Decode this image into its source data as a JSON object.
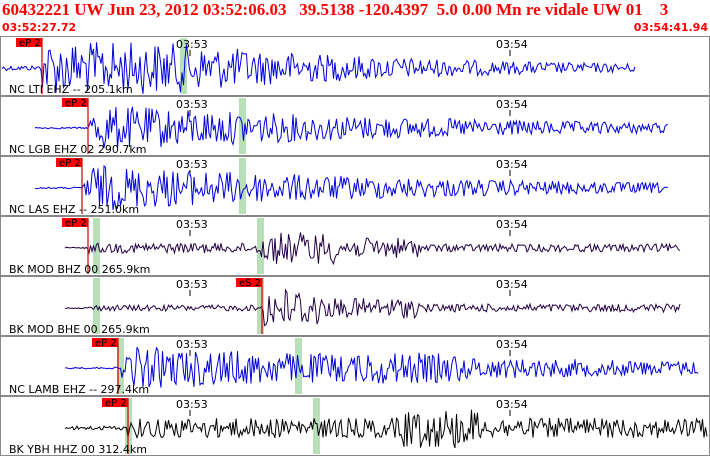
{
  "header": {
    "title": "60432221 UW Jun 23, 2012 03:52:06.03   39.5138 -120.4397  5.0 0.00 Mn re vidale UW 01    3",
    "start_time": "03:52:27.72",
    "end_time": "03:54:41.94"
  },
  "colors": {
    "header_text": "#ff0000",
    "pick_box": "#ff0000",
    "pick_line": "#cc0000",
    "highlight": "#b8e0b8",
    "trace_ehz": "#0000dd",
    "trace_bk": "#220044",
    "trace_hhz": "#000000",
    "panel_border": "#888888"
  },
  "time_labels": [
    "03:53",
    "03:54"
  ],
  "traces": [
    {
      "label": "NC LTI EHZ -- 205.1km",
      "pick": "eP 2",
      "color_key": "trace_ehz",
      "style": "noisy_onset"
    },
    {
      "label": "NC LGB EHZ 02 290.7km",
      "pick": "eP 2",
      "color_key": "trace_ehz",
      "style": "eq"
    },
    {
      "label": "NC LAS EHZ -- 251.0km",
      "pick": "eP 2",
      "color_key": "trace_ehz",
      "style": "eq"
    },
    {
      "label": "BK MOD BHZ 00 265.9km",
      "pick": "eP 2",
      "color_key": "trace_bk",
      "style": "low"
    },
    {
      "label": "BK MOD BHE 00 265.9km",
      "pick": "eS 2",
      "color_key": "trace_bk",
      "style": "low_s"
    },
    {
      "label": "NC LAMB EHZ -- 297.4km",
      "pick": "eP 2",
      "color_key": "trace_ehz",
      "style": "eq_late"
    },
    {
      "label": "BK YBH HHZ 00 312.4km",
      "pick": "eP 2",
      "color_key": "trace_hhz",
      "style": "broadband"
    }
  ]
}
